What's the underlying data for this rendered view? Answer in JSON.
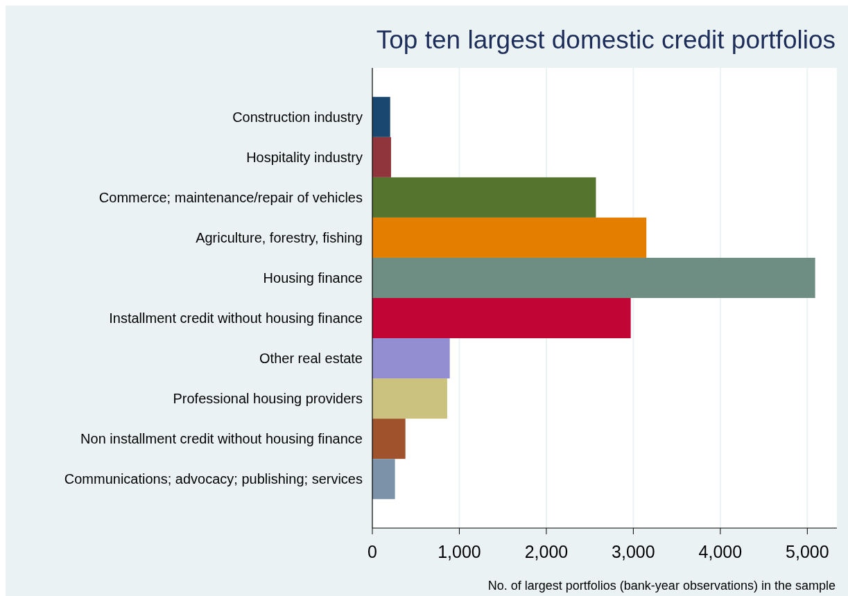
{
  "chart_data": {
    "type": "bar",
    "orientation": "horizontal",
    "title": "Top ten largest domestic credit portfolios",
    "xlabel": "No. of largest portfolios (bank-year observations) in the sample",
    "categories": [
      "Construction industry",
      "Hospitality industry",
      "Commerce; maintenance/repair of vehicles",
      "Agriculture, forestry, fishing",
      "Housing finance",
      "Installment credit without housing finance",
      "Other real estate",
      "Professional housing providers",
      "Non installment credit without housing finance",
      "Communications; advocacy; publishing; services"
    ],
    "values": [
      205,
      215,
      2570,
      3150,
      5090,
      2970,
      890,
      860,
      380,
      260
    ],
    "colors": [
      "#1a476f",
      "#90353b",
      "#55752f",
      "#e37e00",
      "#6e8e84",
      "#c10534",
      "#938dd2",
      "#cac27e",
      "#a0522d",
      "#7b92a8"
    ],
    "xlim": [
      0,
      5340
    ],
    "xticks": [
      {
        "value": 0,
        "label": "0"
      },
      {
        "value": 1000,
        "label": "1,000"
      },
      {
        "value": 2000,
        "label": "2,000"
      },
      {
        "value": 3000,
        "label": "3,000"
      },
      {
        "value": 4000,
        "label": "4,000"
      },
      {
        "value": 5000,
        "label": "5,000"
      }
    ],
    "grid": "x"
  }
}
